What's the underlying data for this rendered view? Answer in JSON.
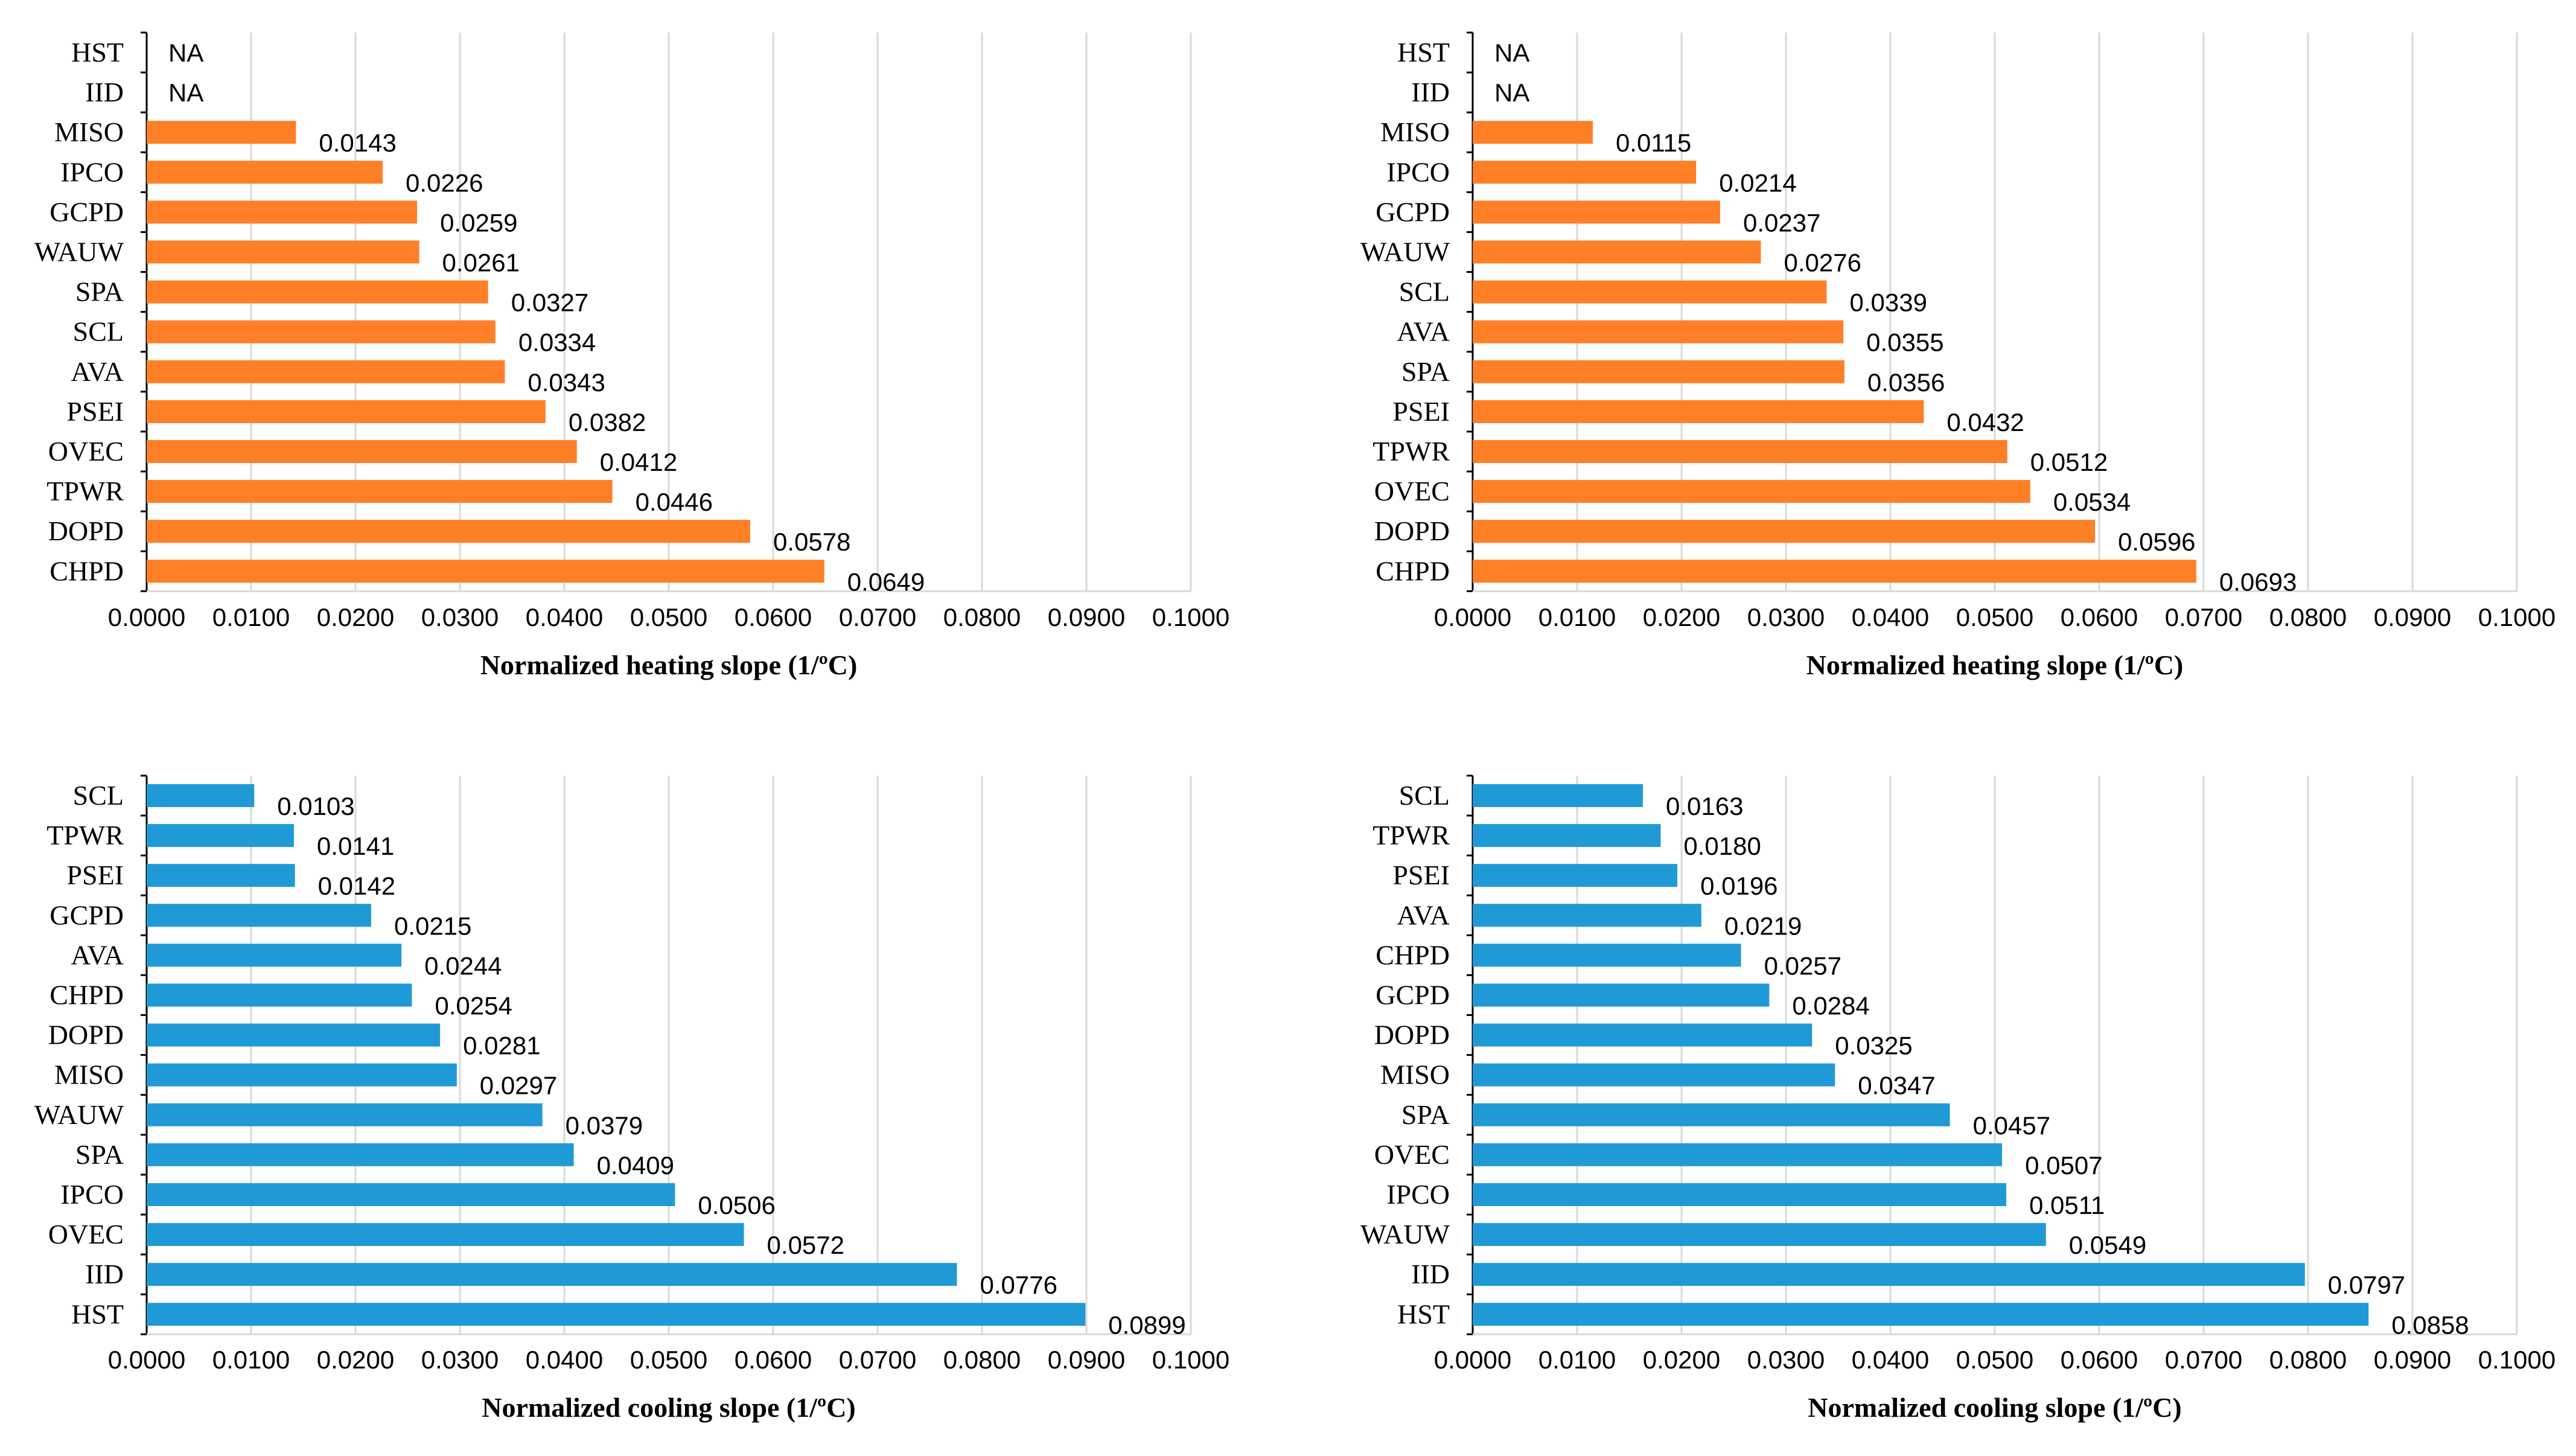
{
  "colors": {
    "heating": "#ff7f27",
    "cooling": "#1f9ad6",
    "grid": "#d9d9d9",
    "axis": "#000000"
  },
  "chart_data": [
    {
      "type": "bar",
      "orientation": "horizontal",
      "xlabel": "Normalized heating slope (1/ºC)",
      "xlim": [
        0,
        0.1
      ],
      "xticks": [
        "0.0000",
        "0.0100",
        "0.0200",
        "0.0300",
        "0.0400",
        "0.0500",
        "0.0600",
        "0.0700",
        "0.0800",
        "0.0900",
        "0.1000"
      ],
      "categories": [
        "HST",
        "IID",
        "MISO",
        "IPCO",
        "GCPD",
        "WAUW",
        "SPA",
        "SCL",
        "AVA",
        "PSEI",
        "OVEC",
        "TPWR",
        "DOPD",
        "CHPD"
      ],
      "values": [
        null,
        null,
        0.0143,
        0.0226,
        0.0259,
        0.0261,
        0.0327,
        0.0334,
        0.0343,
        0.0382,
        0.0412,
        0.0446,
        0.0578,
        0.0649
      ],
      "labels": [
        "NA",
        "NA",
        "0.0143",
        "0.0226",
        "0.0259",
        "0.0261",
        "0.0327",
        "0.0334",
        "0.0343",
        "0.0382",
        "0.0412",
        "0.0446",
        "0.0578",
        "0.0649"
      ],
      "color_key": "heating"
    },
    {
      "type": "bar",
      "orientation": "horizontal",
      "xlabel": "Normalized heating slope (1/ºC)",
      "xlim": [
        0,
        0.1
      ],
      "xticks": [
        "0.0000",
        "0.0100",
        "0.0200",
        "0.0300",
        "0.0400",
        "0.0500",
        "0.0600",
        "0.0700",
        "0.0800",
        "0.0900",
        "0.1000"
      ],
      "categories": [
        "HST",
        "IID",
        "MISO",
        "IPCO",
        "GCPD",
        "WAUW",
        "SCL",
        "AVA",
        "SPA",
        "PSEI",
        "TPWR",
        "OVEC",
        "DOPD",
        "CHPD"
      ],
      "values": [
        null,
        null,
        0.0115,
        0.0214,
        0.0237,
        0.0276,
        0.0339,
        0.0355,
        0.0356,
        0.0432,
        0.0512,
        0.0534,
        0.0596,
        0.0693
      ],
      "labels": [
        "NA",
        "NA",
        "0.0115",
        "0.0214",
        "0.0237",
        "0.0276",
        "0.0339",
        "0.0355",
        "0.0356",
        "0.0432",
        "0.0512",
        "0.0534",
        "0.0596",
        "0.0693"
      ],
      "color_key": "heating"
    },
    {
      "type": "bar",
      "orientation": "horizontal",
      "xlabel": "Normalized cooling slope (1/ºC)",
      "xlim": [
        0,
        0.1
      ],
      "xticks": [
        "0.0000",
        "0.0100",
        "0.0200",
        "0.0300",
        "0.0400",
        "0.0500",
        "0.0600",
        "0.0700",
        "0.0800",
        "0.0900",
        "0.1000"
      ],
      "categories": [
        "SCL",
        "TPWR",
        "PSEI",
        "GCPD",
        "AVA",
        "CHPD",
        "DOPD",
        "MISO",
        "WAUW",
        "SPA",
        "IPCO",
        "OVEC",
        "IID",
        "HST"
      ],
      "values": [
        0.0103,
        0.0141,
        0.0142,
        0.0215,
        0.0244,
        0.0254,
        0.0281,
        0.0297,
        0.0379,
        0.0409,
        0.0506,
        0.0572,
        0.0776,
        0.0899
      ],
      "labels": [
        "0.0103",
        "0.0141",
        "0.0142",
        "0.0215",
        "0.0244",
        "0.0254",
        "0.0281",
        "0.0297",
        "0.0379",
        "0.0409",
        "0.0506",
        "0.0572",
        "0.0776",
        "0.0899"
      ],
      "color_key": "cooling"
    },
    {
      "type": "bar",
      "orientation": "horizontal",
      "xlabel": "Normalized cooling slope (1/ºC)",
      "xlim": [
        0,
        0.1
      ],
      "xticks": [
        "0.0000",
        "0.0100",
        "0.0200",
        "0.0300",
        "0.0400",
        "0.0500",
        "0.0600",
        "0.0700",
        "0.0800",
        "0.0900",
        "0.1000"
      ],
      "categories": [
        "SCL",
        "TPWR",
        "PSEI",
        "AVA",
        "CHPD",
        "GCPD",
        "DOPD",
        "MISO",
        "SPA",
        "OVEC",
        "IPCO",
        "WAUW",
        "IID",
        "HST"
      ],
      "values": [
        0.0163,
        0.018,
        0.0196,
        0.0219,
        0.0257,
        0.0284,
        0.0325,
        0.0347,
        0.0457,
        0.0507,
        0.0511,
        0.0549,
        0.0797,
        0.0858
      ],
      "labels": [
        "0.0163",
        "0.0180",
        "0.0196",
        "0.0219",
        "0.0257",
        "0.0284",
        "0.0325",
        "0.0347",
        "0.0457",
        "0.0507",
        "0.0511",
        "0.0549",
        "0.0797",
        "0.0858"
      ],
      "color_key": "cooling"
    }
  ]
}
